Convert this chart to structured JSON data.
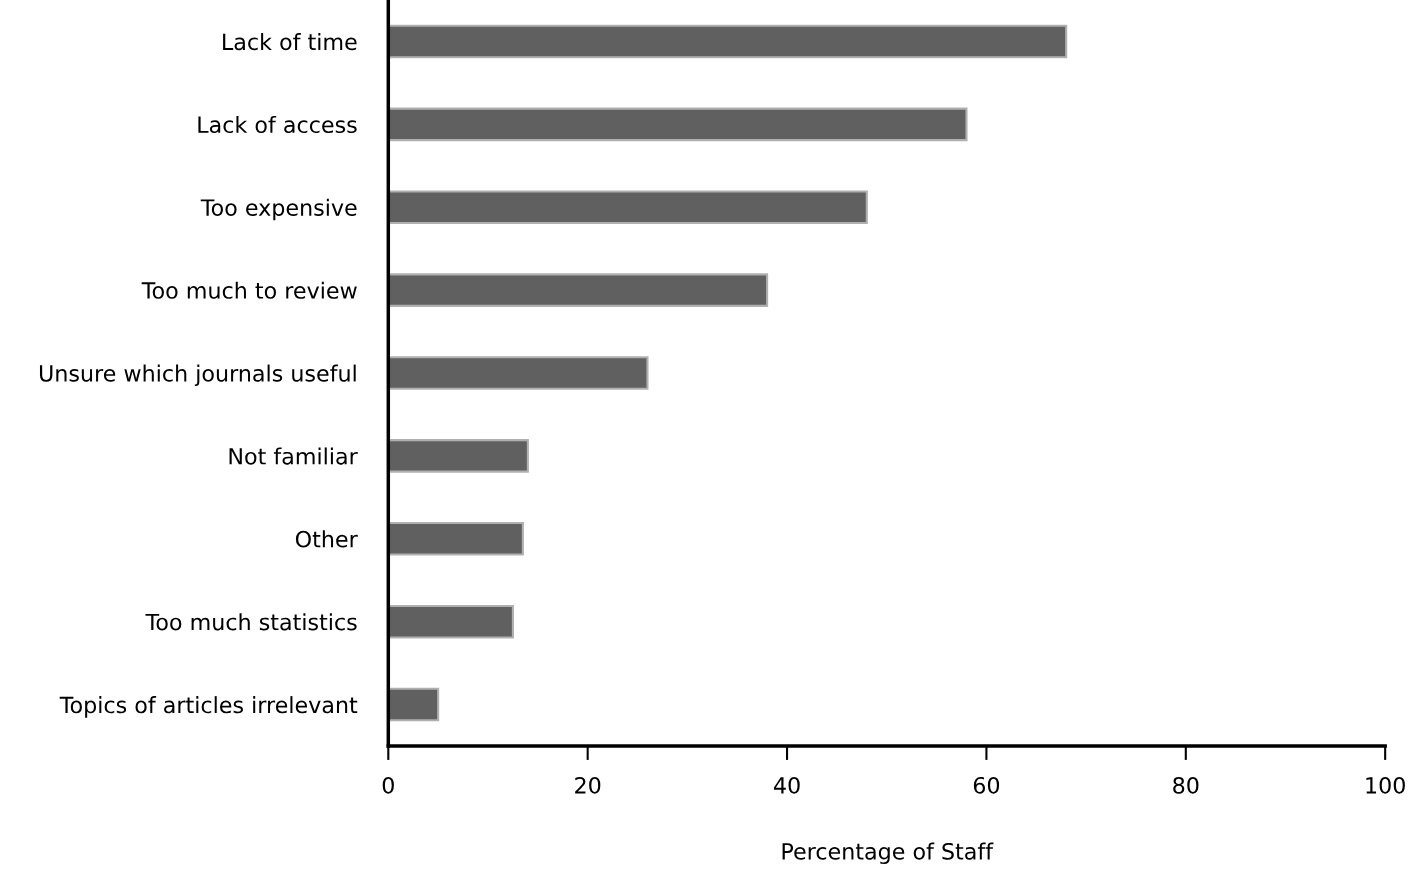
{
  "chart_data": {
    "type": "bar",
    "orientation": "horizontal",
    "xlabel": "Percentage of Staff",
    "categories": [
      "Lack of time",
      "Lack of access",
      "Too expensive",
      "Too much to review",
      "Unsure which journals useful",
      "Not familiar",
      "Other",
      "Too much statistics",
      "Topics of articles irrelevant"
    ],
    "values": [
      68,
      58,
      48,
      38,
      26,
      14,
      13.5,
      12.5,
      5
    ],
    "color": "#606060",
    "xlim": [
      0,
      100
    ],
    "xticks": [
      0,
      20,
      40,
      60,
      80,
      100
    ],
    "grid": false
  }
}
